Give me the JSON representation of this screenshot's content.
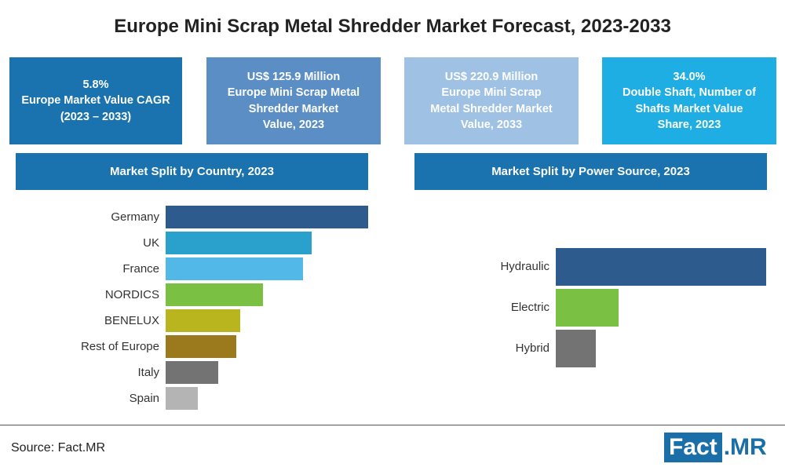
{
  "title": "Europe Mini Scrap Metal Shredder Market Forecast, 2023-2033",
  "kpis": [
    {
      "text": "5.8%\nEurope Market Value CAGR\n(2023 – 2033)",
      "color": "#1a73ae"
    },
    {
      "text": "US$ 125.9 Million\nEurope Mini Scrap Metal\nShredder Market\nValue, 2023",
      "color": "#5b8ec4"
    },
    {
      "text": "US$ 220.9 Million\nEurope Mini Scrap\nMetal Shredder Market\nValue, 2033",
      "color": "#9fc1e3"
    },
    {
      "text": "34.0%\nDouble Shaft, Number of\nShafts Market Value\nShare, 2023",
      "color": "#1eaee4"
    }
  ],
  "sections": {
    "country_title": "Market Split by Country, 2023",
    "power_title": "Market Split by Power Source, 2023",
    "color": "#1a73ae"
  },
  "chart_data": [
    {
      "type": "bar",
      "orientation": "horizontal",
      "title": "Market Split by Country, 2023",
      "categories": [
        "Germany",
        "UK",
        "France",
        "NORDICS",
        "BENELUX",
        "Rest of Europe",
        "Italy",
        "Spain"
      ],
      "values": [
        100,
        72,
        68,
        48,
        37,
        35,
        26,
        16
      ],
      "colors": [
        "#2e5b8e",
        "#2aa0cc",
        "#52b8e8",
        "#79c043",
        "#b9b51f",
        "#9a7a1c",
        "#737373",
        "#b4b4b4"
      ],
      "value_unit": "relative bar length (no values shown)",
      "xlim": [
        0,
        100
      ],
      "grid": false
    },
    {
      "type": "bar",
      "orientation": "horizontal",
      "title": "Market Split by Power Source, 2023",
      "categories": [
        "Hydraulic",
        "Electric",
        "Hybrid"
      ],
      "values": [
        100,
        30,
        19
      ],
      "colors": [
        "#2e5b8e",
        "#79c043",
        "#737373"
      ],
      "value_unit": "relative bar length (no values shown)",
      "xlim": [
        0,
        100
      ],
      "grid": false
    }
  ],
  "footer": {
    "source": "Source: Fact.MR",
    "logo_part1": "Fact",
    "logo_part2": ".MR"
  }
}
